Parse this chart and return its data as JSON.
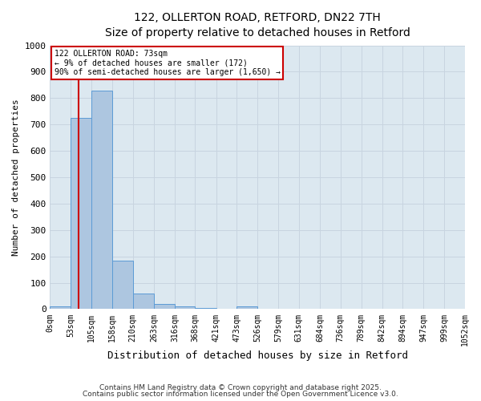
{
  "title_line1": "122, OLLERTON ROAD, RETFORD, DN22 7TH",
  "title_line2": "Size of property relative to detached houses in Retford",
  "xlabel": "Distribution of detached houses by size in Retford",
  "ylabel": "Number of detached properties",
  "bin_labels": [
    "0sqm",
    "53sqm",
    "105sqm",
    "158sqm",
    "210sqm",
    "263sqm",
    "316sqm",
    "368sqm",
    "421sqm",
    "473sqm",
    "526sqm",
    "579sqm",
    "631sqm",
    "684sqm",
    "736sqm",
    "789sqm",
    "842sqm",
    "894sqm",
    "947sqm",
    "999sqm",
    "1052sqm"
  ],
  "bar_values": [
    10,
    725,
    830,
    185,
    60,
    20,
    10,
    5,
    0,
    10,
    0,
    0,
    0,
    0,
    0,
    0,
    0,
    0,
    0,
    0
  ],
  "bin_edges": [
    0,
    53,
    105,
    158,
    210,
    263,
    316,
    368,
    421,
    473,
    526,
    579,
    631,
    684,
    736,
    789,
    842,
    894,
    947,
    999,
    1052
  ],
  "property_size": 73,
  "bar_color": "#adc6e0",
  "bar_edge_color": "#5b9bd5",
  "red_line_color": "#cc0000",
  "annotation_line1": "122 OLLERTON ROAD: 73sqm",
  "annotation_line2": "← 9% of detached houses are smaller (172)",
  "annotation_line3": "90% of semi-detached houses are larger (1,650) →",
  "annotation_box_color": "#ffffff",
  "annotation_box_edge": "#cc0000",
  "ylim": [
    0,
    1000
  ],
  "yticks": [
    0,
    100,
    200,
    300,
    400,
    500,
    600,
    700,
    800,
    900,
    1000
  ],
  "grid_color": "#c8d4e0",
  "bg_color": "#dce8f0",
  "footer_line1": "Contains HM Land Registry data © Crown copyright and database right 2025.",
  "footer_line2": "Contains public sector information licensed under the Open Government Licence v3.0."
}
